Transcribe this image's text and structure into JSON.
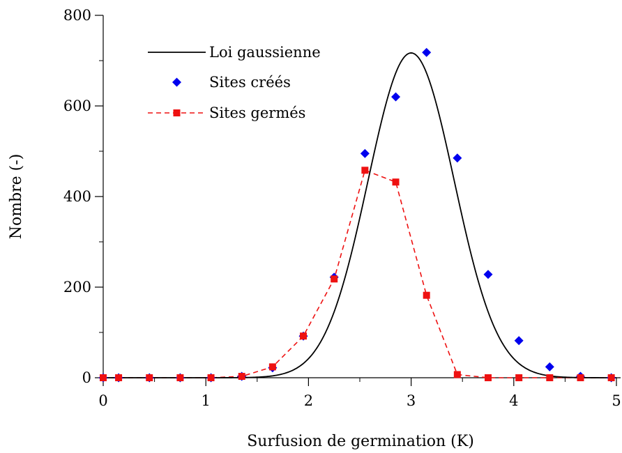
{
  "chart_data": {
    "type": "line",
    "xlabel": "Surfusion de germination (K)",
    "ylabel": "Nombre (-)",
    "xlim": [
      0,
      5
    ],
    "ylim": [
      0,
      800
    ],
    "xticks": [
      0,
      1,
      2,
      3,
      4,
      5
    ],
    "xtick_labels": [
      "0",
      "1",
      "2",
      "3",
      "4",
      "5"
    ],
    "yticks": [
      0,
      200,
      400,
      600,
      800
    ],
    "ytick_labels": [
      "0",
      "200",
      "400",
      "600",
      "800"
    ],
    "grid": false,
    "legend_position": "top-left",
    "series": [
      {
        "name": "Loi gaussienne",
        "kind": "line",
        "color": "#000000",
        "gaussian": {
          "amplitude": 717,
          "mean": 3.0,
          "sigma": 0.42
        }
      },
      {
        "name": "Sites créés",
        "kind": "scatter",
        "marker": "diamond",
        "color": "#0000ee",
        "x": [
          0,
          0.15,
          0.45,
          0.75,
          1.05,
          1.35,
          1.65,
          1.95,
          2.25,
          2.55,
          2.85,
          3.15,
          3.45,
          3.75,
          4.05,
          4.35,
          4.65,
          4.95
        ],
        "y": [
          0,
          0,
          0,
          0,
          0,
          3,
          22,
          92,
          222,
          495,
          620,
          718,
          485,
          228,
          82,
          24,
          3,
          0
        ]
      },
      {
        "name": "Sites germés",
        "kind": "line-marker",
        "marker": "square",
        "line_style": "dashed",
        "color": "#ee1111",
        "x": [
          0,
          0.15,
          0.45,
          0.75,
          1.05,
          1.35,
          1.65,
          1.95,
          2.25,
          2.55,
          2.85,
          3.15,
          3.45,
          3.75,
          4.05,
          4.35,
          4.65,
          4.95
        ],
        "y": [
          0,
          0,
          0,
          0,
          0,
          3,
          24,
          92,
          218,
          458,
          432,
          182,
          7,
          0,
          0,
          0,
          0,
          0
        ]
      }
    ]
  }
}
